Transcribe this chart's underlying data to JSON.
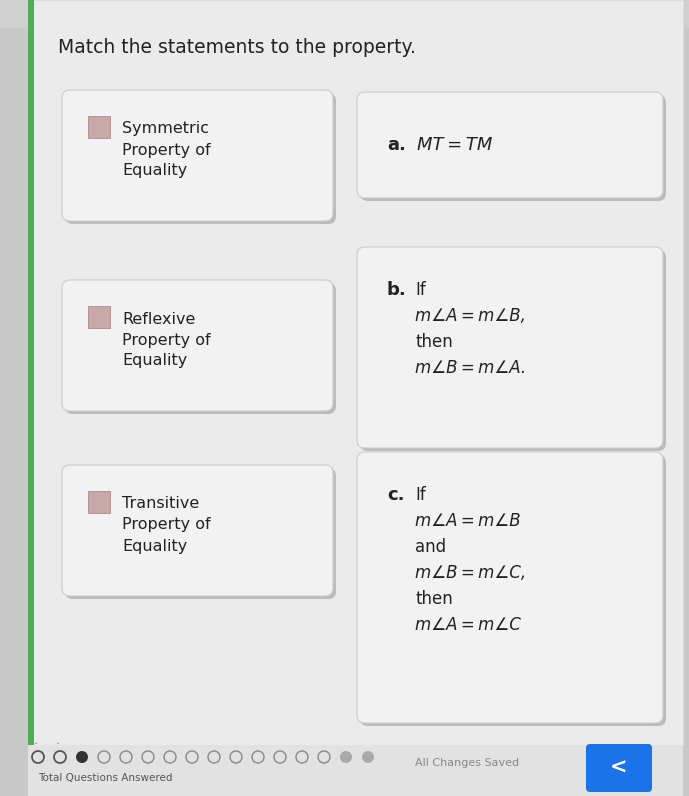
{
  "title": "Match the statements to the property.",
  "title_fontsize": 13.5,
  "bg_color": "#c8c8c8",
  "panel_bg": "#ebebeb",
  "card_bg": "#f2f2f2",
  "card_border": "#cccccc",
  "left_cards": [
    "Symmetric\nProperty of\nEquality",
    "Reflexive\nProperty of\nEquality",
    "Transitive\nProperty of\nEquality"
  ],
  "bottom_bar_color": "#e8e8e8",
  "nav_btn_color": "#1a73e8",
  "left_accent": "#4caf50",
  "card_shadow": "#bbbbbb",
  "indicator_fill": "#c8a8a8",
  "indicator_border": "#a08080",
  "text_color": "#222222"
}
